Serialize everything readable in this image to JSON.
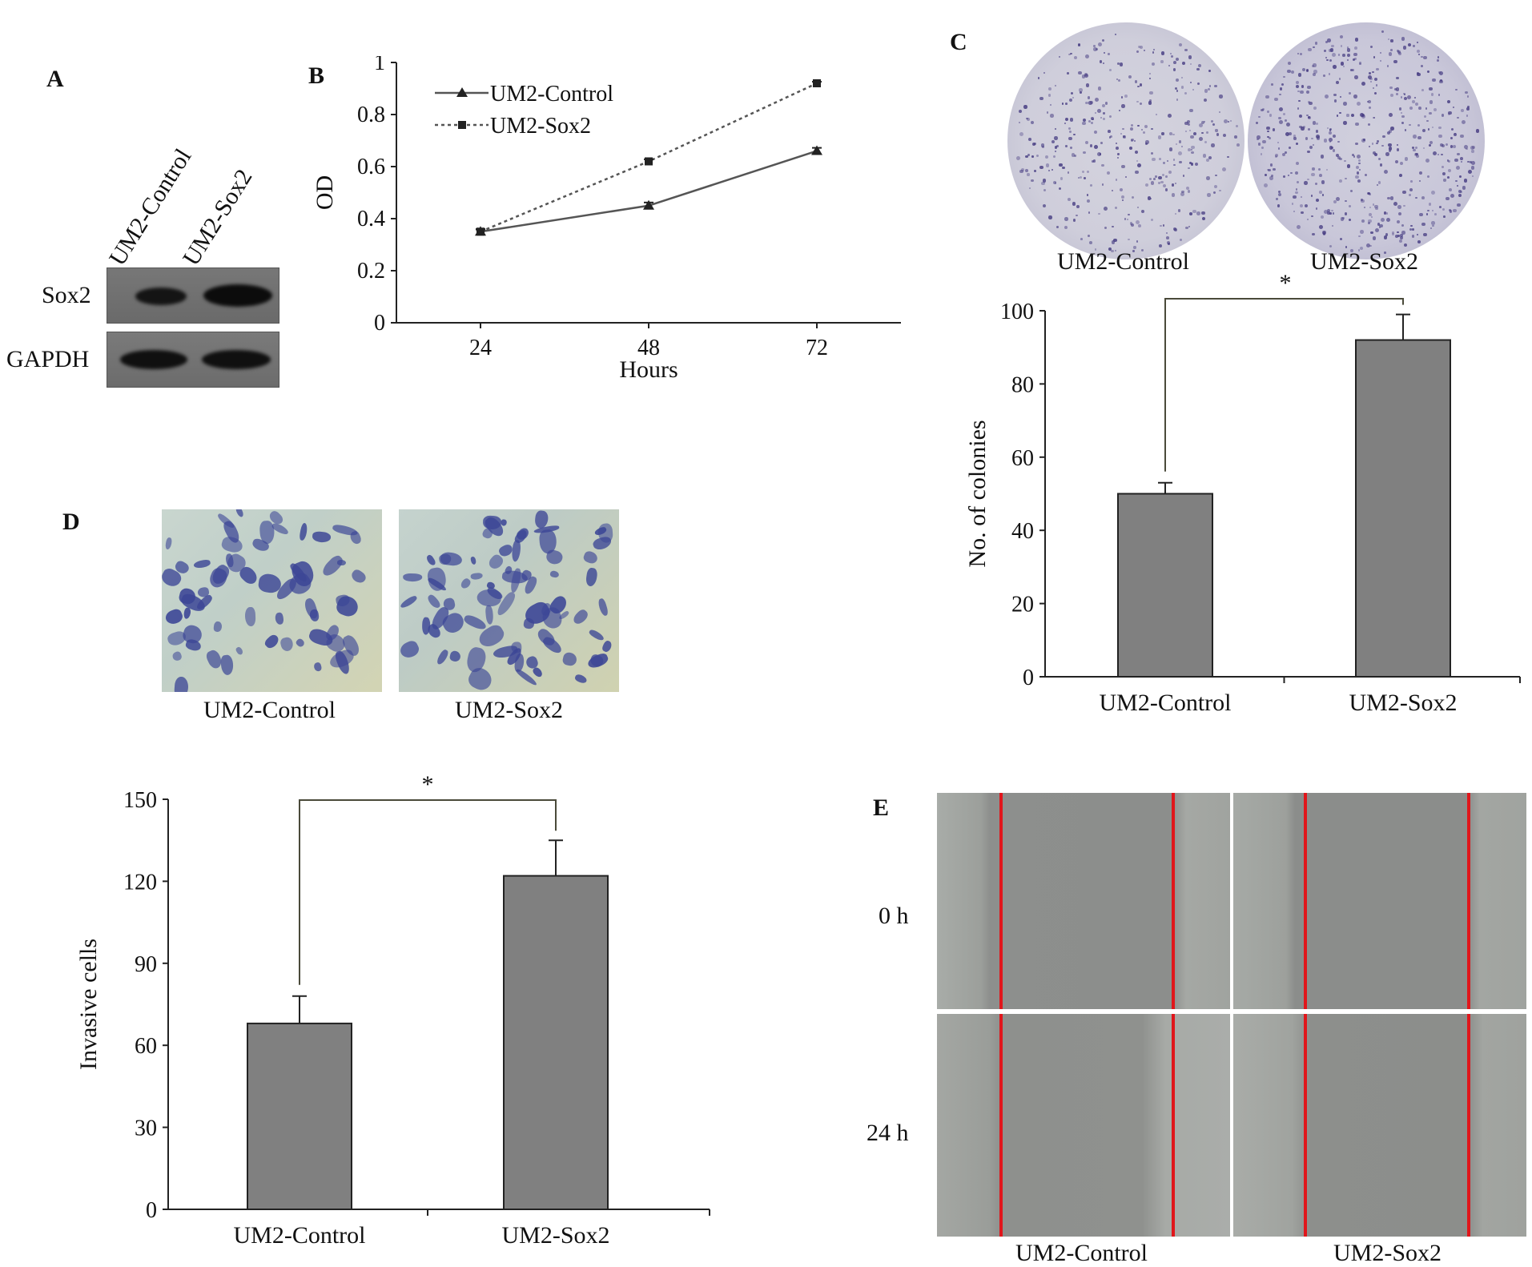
{
  "panels": {
    "a": {
      "letter": "A",
      "lanes": [
        "UM2-Control",
        "UM2-Sox2"
      ],
      "rows": [
        "Sox2",
        "GAPDH"
      ]
    },
    "b": {
      "letter": "B"
    },
    "c": {
      "letter": "C",
      "photo_labels": [
        "UM2-Control",
        "UM2-Sox2"
      ]
    },
    "d": {
      "letter": "D",
      "photo_labels": [
        "UM2-Control",
        "UM2-Sox2"
      ]
    },
    "e": {
      "letter": "E",
      "rows": [
        "0 h",
        "24 h"
      ],
      "cols": [
        "UM2-Control",
        "UM2-Sox2"
      ]
    }
  },
  "chart_data": [
    {
      "id": "B",
      "type": "line",
      "xlabel": "Hours",
      "ylabel": "OD",
      "x": [
        24,
        48,
        72
      ],
      "ylim": [
        0,
        1
      ],
      "yticks": [
        0,
        0.2,
        0.4,
        0.6,
        0.8,
        1
      ],
      "series": [
        {
          "name": "UM2-Control",
          "marker": "triangle",
          "style": "solid",
          "values": [
            0.35,
            0.45,
            0.66
          ],
          "err": [
            0.01,
            0.012,
            0.012
          ]
        },
        {
          "name": "UM2-Sox2",
          "marker": "square",
          "style": "dotted",
          "values": [
            0.35,
            0.62,
            0.92
          ],
          "err": [
            0.008,
            0.008,
            0.006
          ]
        }
      ],
      "legend": "top-left"
    },
    {
      "id": "C",
      "type": "bar",
      "ylabel": "No. of colonies",
      "categories": [
        "UM2-Control",
        "UM2-Sox2"
      ],
      "values": [
        50,
        92
      ],
      "err": [
        3,
        7
      ],
      "ylim": [
        0,
        100
      ],
      "yticks": [
        0,
        20,
        40,
        60,
        80,
        100
      ],
      "significance": "*"
    },
    {
      "id": "D",
      "type": "bar",
      "ylabel": "Invasive cells",
      "categories": [
        "UM2-Control",
        "UM2-Sox2"
      ],
      "values": [
        68,
        122
      ],
      "err": [
        10,
        13
      ],
      "ylim": [
        0,
        150
      ],
      "yticks": [
        0,
        30,
        60,
        90,
        120,
        150
      ],
      "significance": "*"
    }
  ]
}
